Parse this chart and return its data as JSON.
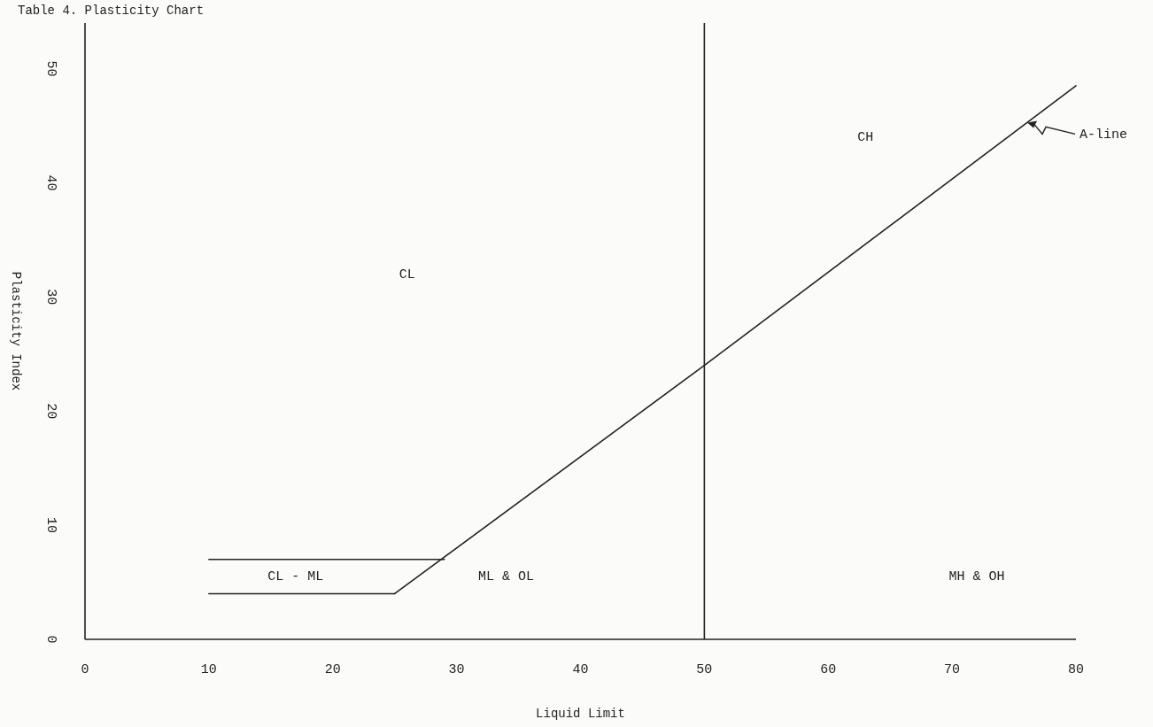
{
  "chart_data": {
    "type": "line",
    "title": "Table 4.  Plasticity Chart",
    "xlabel": "Liquid Limit",
    "ylabel": "Plasticity Index",
    "xlim": [
      0,
      80
    ],
    "ylim": [
      0,
      54
    ],
    "xticks": [
      0,
      10,
      20,
      30,
      40,
      50,
      60,
      70,
      80
    ],
    "yticks": [
      0,
      10,
      20,
      30,
      40,
      50
    ],
    "grid": false,
    "marker": "none",
    "line_style": "solid",
    "series": [
      {
        "color": "#222222",
        "x": [
          25,
          50,
          80
        ],
        "values": [
          4,
          24,
          48.5
        ]
      },
      {
        "color": "#222222",
        "x": [
          10,
          25
        ],
        "values": [
          4,
          4
        ]
      },
      {
        "color": "#222222",
        "x": [
          10,
          29
        ],
        "values": [
          7,
          7
        ]
      }
    ],
    "ref_lines": [
      {
        "axis": "x",
        "value": 50,
        "color": "#222222"
      }
    ],
    "annotations": [
      "CL",
      "CH",
      "CL - ML",
      "ML & OL",
      "MH & OH",
      {
        "text": "A-line",
        "x": 76,
        "y": 45.2
      }
    ]
  }
}
